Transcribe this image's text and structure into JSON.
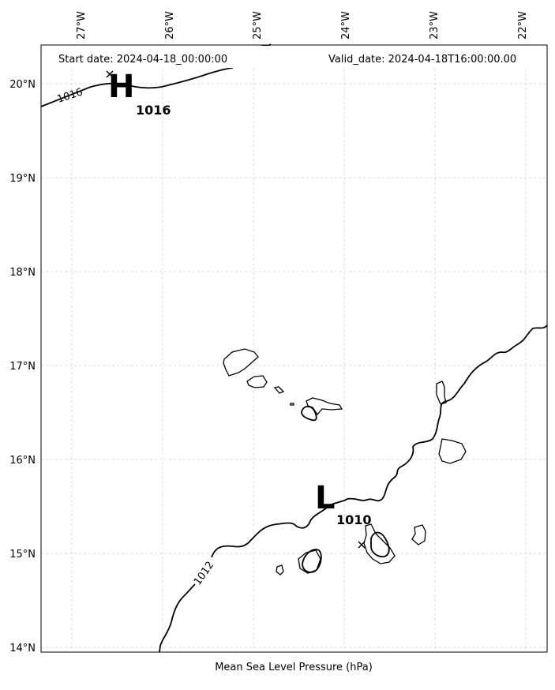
{
  "header": {
    "start_date": "Start date: 2024-04-18_00:00:00",
    "valid_date": "Valid_date: 2024-04-18T16:00:00.00"
  },
  "axes": {
    "lon_labels": [
      "27°W",
      "26°W",
      "25°W",
      "24°W",
      "23°W",
      "22°W"
    ],
    "lat_labels": [
      "20°N",
      "19°N",
      "18°N",
      "17°N",
      "16°N",
      "15°N",
      "14°N"
    ]
  },
  "pressure_centers": [
    {
      "letter": "H",
      "value": "1016"
    },
    {
      "letter": "L",
      "value": "1010"
    }
  ],
  "isobar_labels": [
    "1016",
    "1012"
  ],
  "footer": {
    "caption": "Mean Sea Level Pressure (hPa)"
  }
}
